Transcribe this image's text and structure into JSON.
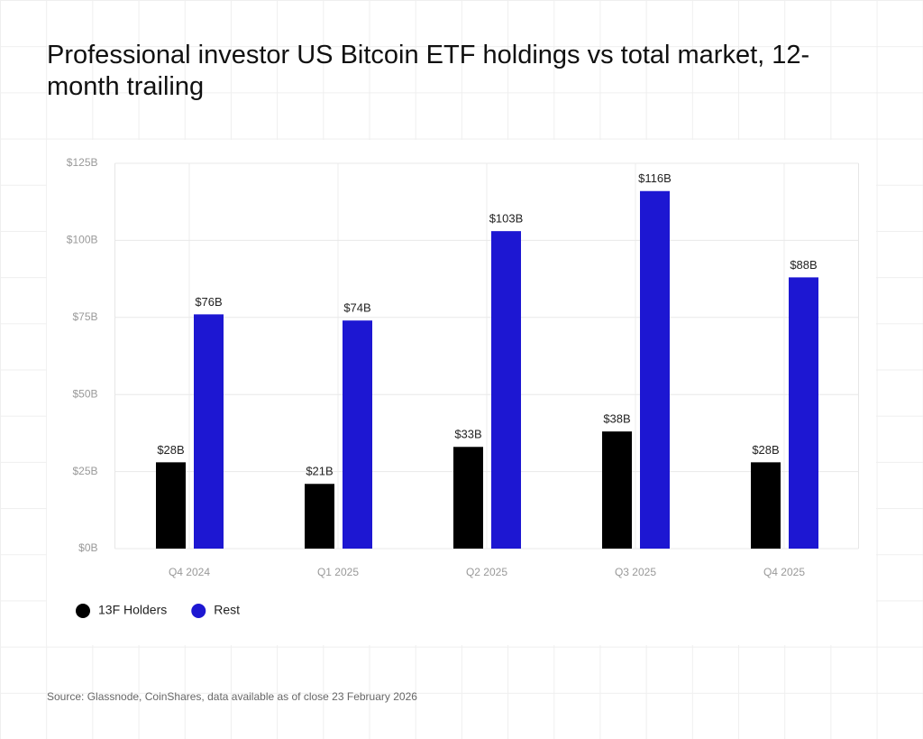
{
  "chart_data": {
    "type": "bar",
    "title": "Professional investor US Bitcoin ETF holdings vs total market, 12-month trailing",
    "categories": [
      "Q4 2024",
      "Q1 2025",
      "Q2 2025",
      "Q3 2025",
      "Q4 2025"
    ],
    "series": [
      {
        "name": "13F Holders",
        "color": "#000000",
        "values": [
          28,
          21,
          33,
          38,
          28
        ],
        "value_labels": [
          "$28B",
          "$21B",
          "$33B",
          "$38B",
          "$28B"
        ]
      },
      {
        "name": "Rest",
        "color": "#1d17d2",
        "values": [
          76,
          74,
          103,
          116,
          88
        ],
        "value_labels": [
          "$76B",
          "$74B",
          "$103B",
          "$116B",
          "$88B"
        ]
      }
    ],
    "ylim": [
      0,
      125
    ],
    "yticks": [
      {
        "value": 0,
        "label": "$0B"
      },
      {
        "value": 25,
        "label": "$25B"
      },
      {
        "value": 50,
        "label": "$50B"
      },
      {
        "value": 75,
        "label": "$75B"
      },
      {
        "value": 100,
        "label": "$100B"
      },
      {
        "value": 125,
        "label": "$125B"
      }
    ],
    "grid": true,
    "legend": "bottom-left",
    "source": "Source: Glassnode, CoinShares, data available as of close 23 February 2026"
  }
}
